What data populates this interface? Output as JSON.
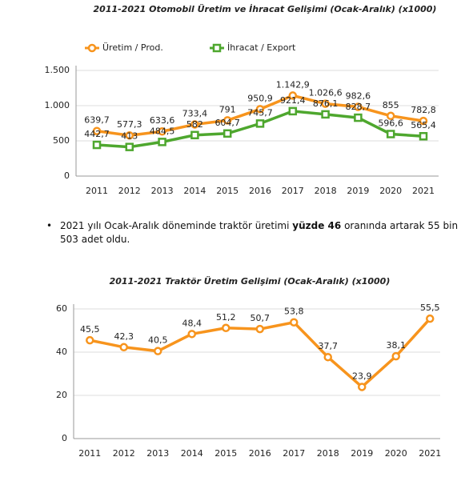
{
  "chart_data": [
    {
      "type": "line",
      "title": "2011-2021 Otomobil Üretim ve İhracat Gelişimi (Ocak-Aralık) (x1000)",
      "categories": [
        "2011",
        "2012",
        "2013",
        "2014",
        "2015",
        "2016",
        "2017",
        "2018",
        "2019",
        "2020",
        "2021"
      ],
      "series": [
        {
          "name": "Üretim / Prod.",
          "color": "#f7941d",
          "marker": "circle",
          "values": [
            639.7,
            577.3,
            633.6,
            733.4,
            791,
            950.9,
            1142.9,
            1026.6,
            982.6,
            855,
            782.8
          ],
          "value_labels": [
            "639,7",
            "577,3",
            "633,6",
            "733,4",
            "791",
            "950,9",
            "1.142,9",
            "1.026,6",
            "982,6",
            "855",
            "782,8"
          ]
        },
        {
          "name": "İhracat / Export",
          "color": "#4ea72e",
          "marker": "square",
          "values": [
            442.7,
            413,
            484.5,
            582,
            604.7,
            745.7,
            921.4,
            876.1,
            828.7,
            596.6,
            565.4
          ],
          "value_labels": [
            "442,7",
            "413",
            "484,5",
            "582",
            "604,7",
            "745,7",
            "921,4",
            "876,1",
            "828,7",
            "596,6",
            "565,4"
          ]
        }
      ],
      "ylim": [
        0,
        1500
      ],
      "yticks": [
        0,
        500,
        {
          "value": 1000,
          "label": "1.000"
        },
        {
          "value": 1500,
          "label": "1.500"
        }
      ],
      "grid": true,
      "legend": "top"
    },
    {
      "type": "line",
      "title": "2011-2021 Traktör Üretim Gelişimi (Ocak-Aralık) (x1000)",
      "categories": [
        "2011",
        "2012",
        "2013",
        "2014",
        "2015",
        "2016",
        "2017",
        "2018",
        "2019",
        "2020",
        "2021"
      ],
      "values": [
        45.5,
        42.3,
        40.5,
        48.4,
        51.2,
        50.7,
        53.8,
        37.7,
        23.9,
        38.1,
        55.5
      ],
      "value_labels": [
        "45,5",
        "42,3",
        "40,5",
        "48,4",
        "51,2",
        "50,7",
        "53,8",
        "37,7",
        "23,9",
        "38,1",
        "55,5"
      ],
      "color": "#f7941d",
      "marker": "circle",
      "ylim": [
        0,
        60
      ],
      "yticks": [
        0,
        20,
        40,
        60
      ],
      "grid": true
    }
  ],
  "bullet": {
    "text_before": "2021 yılı Ocak-Aralık döneminde traktör üretimi ",
    "bold": "yüzde 46",
    "text_after": " oranında artarak 55 bin 503 adet oldu."
  }
}
